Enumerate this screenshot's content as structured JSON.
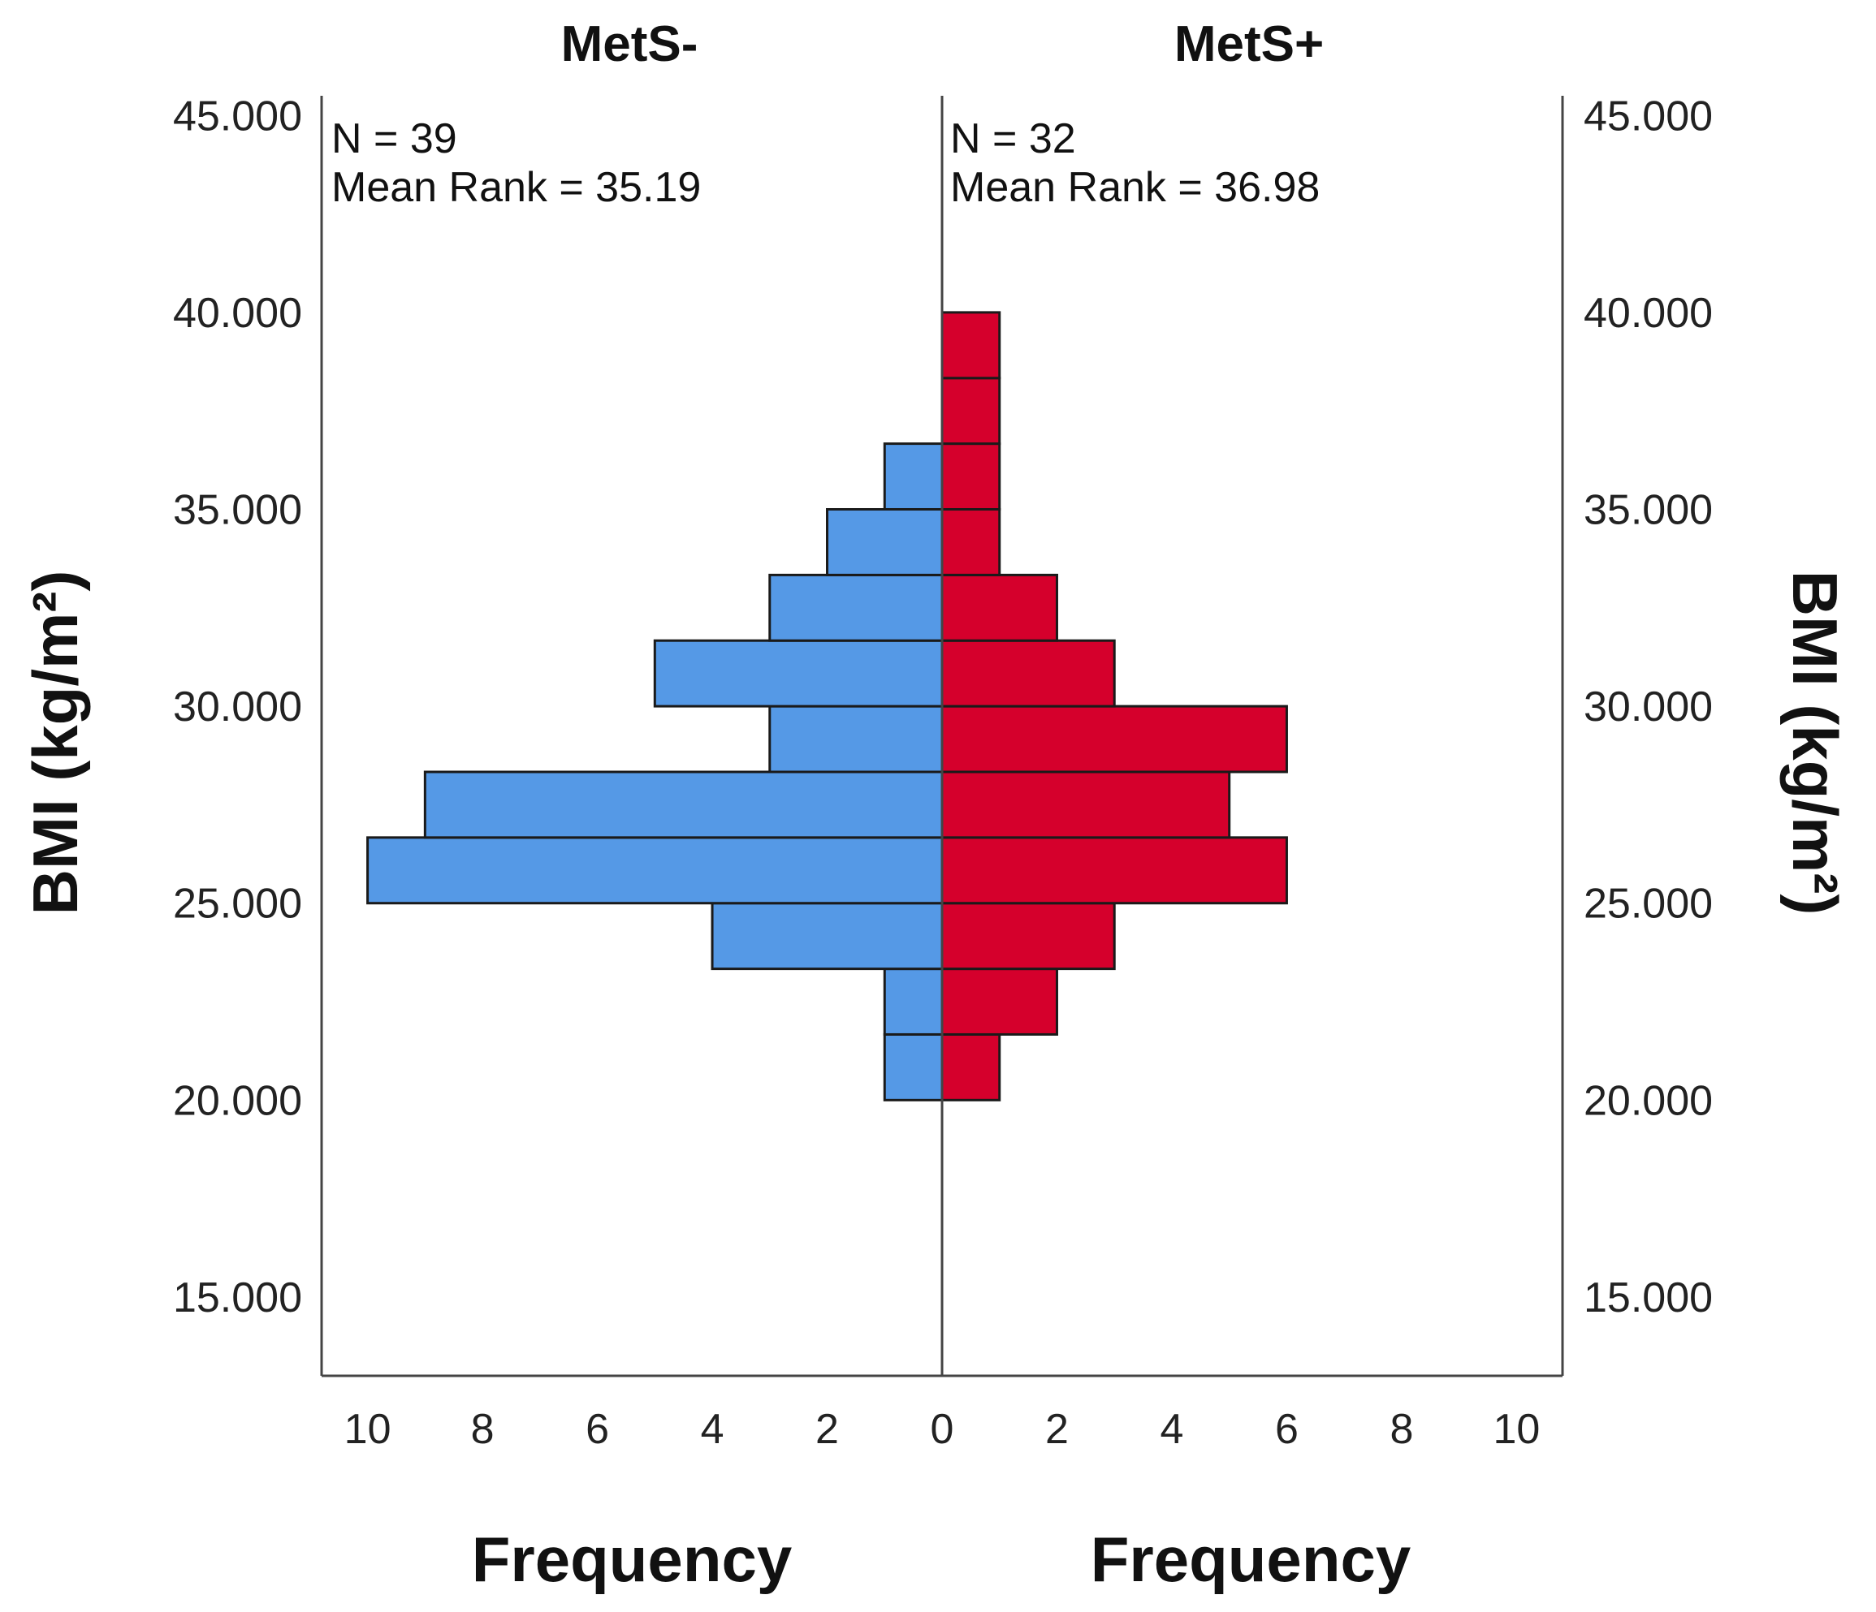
{
  "chart_data": {
    "type": "bar",
    "orientation": "horizontal-population-pyramid",
    "bin_edges": [
      20,
      21.667,
      23.333,
      25,
      26.667,
      28.333,
      30,
      31.667,
      33.333,
      35,
      36.667,
      38.333,
      40
    ],
    "ylim": [
      13,
      45.5
    ],
    "yticks": [
      15,
      20,
      25,
      30,
      35,
      40,
      45
    ],
    "ytick_labels": [
      "15.000",
      "20.000",
      "25.000",
      "30.000",
      "35.000",
      "40.000",
      "45.000"
    ],
    "xlim": [
      0,
      10.8
    ],
    "xticks": [
      0,
      2,
      4,
      6,
      8,
      10
    ],
    "ylabel": "BMI (kg/m²)",
    "xlabel": "Frequency",
    "series": [
      {
        "name": "MetS-",
        "side": "left",
        "color": "#5599e6",
        "values": [
          1,
          1,
          4,
          10,
          9,
          3,
          5,
          3,
          2,
          1,
          0,
          0
        ],
        "stat_n": "N = 39",
        "stat_rank": "Mean Rank = 35.19"
      },
      {
        "name": "MetS+",
        "side": "right",
        "color": "#d5002c",
        "values": [
          1,
          2,
          3,
          6,
          5,
          6,
          3,
          2,
          1,
          1,
          1,
          1
        ],
        "stat_n": "N = 32",
        "stat_rank": "Mean Rank = 36.98"
      }
    ]
  }
}
